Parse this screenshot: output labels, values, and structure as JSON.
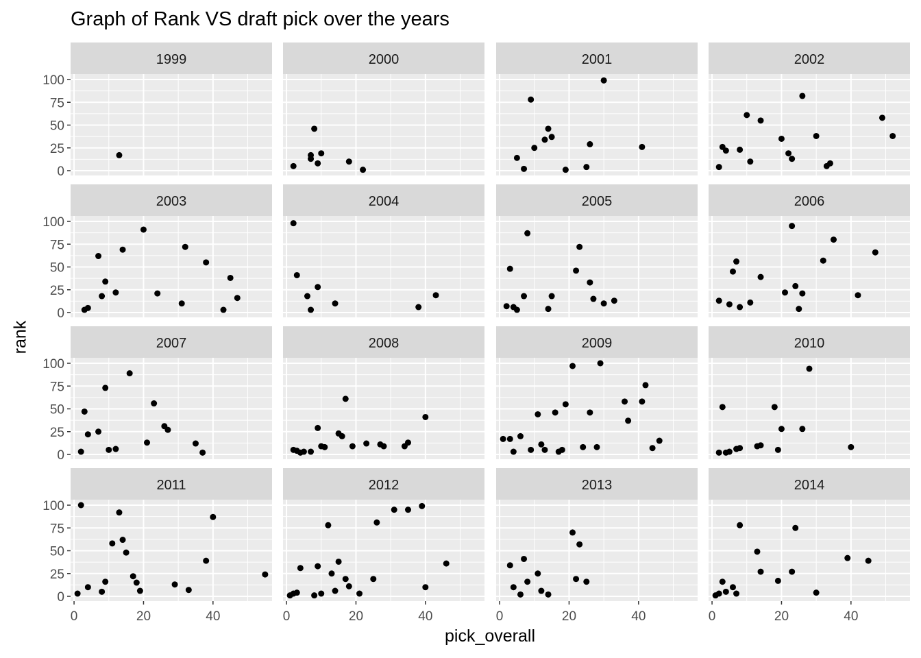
{
  "chart_data": {
    "type": "scatter",
    "title": "Graph of Rank VS draft pick over the years",
    "xlabel": "pick_overall",
    "ylabel": "rank",
    "xlim": [
      0,
      55
    ],
    "ylim": [
      0,
      100
    ],
    "x_ticks": [
      0,
      20,
      40
    ],
    "y_ticks": [
      0,
      25,
      50,
      75,
      100
    ],
    "grid": true,
    "colors": {
      "panel_bg": "#ebebeb",
      "strip_bg": "#d9d9d9",
      "grid": "#ffffff",
      "point": "#000000",
      "tick_text": "#4d4d4d"
    },
    "panels": [
      {
        "label": "1999",
        "points": [
          [
            13,
            17
          ]
        ]
      },
      {
        "label": "2000",
        "points": [
          [
            2,
            5
          ],
          [
            7,
            13
          ],
          [
            7,
            17
          ],
          [
            8,
            46
          ],
          [
            9,
            8
          ],
          [
            10,
            19
          ],
          [
            18,
            10
          ],
          [
            22,
            1
          ]
        ]
      },
      {
        "label": "2001",
        "points": [
          [
            5,
            14
          ],
          [
            7,
            2
          ],
          [
            9,
            78
          ],
          [
            10,
            25
          ],
          [
            13,
            34
          ],
          [
            14,
            46
          ],
          [
            15,
            37
          ],
          [
            19,
            1
          ],
          [
            25,
            4
          ],
          [
            26,
            29
          ],
          [
            30,
            99
          ],
          [
            41,
            26
          ]
        ]
      },
      {
        "label": "2002",
        "points": [
          [
            2,
            4
          ],
          [
            3,
            26
          ],
          [
            4,
            22
          ],
          [
            8,
            23
          ],
          [
            10,
            61
          ],
          [
            11,
            10
          ],
          [
            14,
            55
          ],
          [
            20,
            35
          ],
          [
            22,
            19
          ],
          [
            23,
            13
          ],
          [
            26,
            82
          ],
          [
            30,
            38
          ],
          [
            33,
            5
          ],
          [
            34,
            8
          ],
          [
            49,
            58
          ],
          [
            52,
            38
          ]
        ]
      },
      {
        "label": "2003",
        "points": [
          [
            3,
            3
          ],
          [
            4,
            5
          ],
          [
            7,
            62
          ],
          [
            8,
            18
          ],
          [
            9,
            34
          ],
          [
            12,
            22
          ],
          [
            14,
            69
          ],
          [
            20,
            91
          ],
          [
            24,
            21
          ],
          [
            31,
            10
          ],
          [
            32,
            72
          ],
          [
            38,
            55
          ],
          [
            43,
            3
          ],
          [
            45,
            38
          ],
          [
            47,
            16
          ]
        ]
      },
      {
        "label": "2004",
        "points": [
          [
            2,
            98
          ],
          [
            3,
            41
          ],
          [
            6,
            18
          ],
          [
            7,
            3
          ],
          [
            9,
            28
          ],
          [
            14,
            10
          ],
          [
            38,
            6
          ],
          [
            43,
            19
          ]
        ]
      },
      {
        "label": "2005",
        "points": [
          [
            2,
            7
          ],
          [
            3,
            48
          ],
          [
            4,
            6
          ],
          [
            5,
            3
          ],
          [
            7,
            18
          ],
          [
            8,
            87
          ],
          [
            14,
            4
          ],
          [
            15,
            18
          ],
          [
            22,
            46
          ],
          [
            23,
            72
          ],
          [
            26,
            33
          ],
          [
            27,
            15
          ],
          [
            30,
            10
          ],
          [
            33,
            13
          ]
        ]
      },
      {
        "label": "2006",
        "points": [
          [
            2,
            13
          ],
          [
            5,
            9
          ],
          [
            6,
            45
          ],
          [
            7,
            56
          ],
          [
            8,
            6
          ],
          [
            11,
            11
          ],
          [
            14,
            39
          ],
          [
            21,
            22
          ],
          [
            23,
            95
          ],
          [
            24,
            29
          ],
          [
            25,
            4
          ],
          [
            26,
            21
          ],
          [
            32,
            57
          ],
          [
            35,
            80
          ],
          [
            42,
            19
          ],
          [
            47,
            66
          ]
        ]
      },
      {
        "label": "2007",
        "points": [
          [
            2,
            3
          ],
          [
            3,
            47
          ],
          [
            4,
            22
          ],
          [
            7,
            25
          ],
          [
            9,
            73
          ],
          [
            10,
            5
          ],
          [
            12,
            6
          ],
          [
            16,
            89
          ],
          [
            21,
            13
          ],
          [
            23,
            56
          ],
          [
            26,
            31
          ],
          [
            27,
            27
          ],
          [
            35,
            12
          ],
          [
            37,
            2
          ]
        ]
      },
      {
        "label": "2008",
        "points": [
          [
            2,
            5
          ],
          [
            3,
            4
          ],
          [
            4,
            2
          ],
          [
            5,
            3
          ],
          [
            7,
            3
          ],
          [
            9,
            29
          ],
          [
            10,
            9
          ],
          [
            11,
            8
          ],
          [
            15,
            23
          ],
          [
            16,
            20
          ],
          [
            17,
            61
          ],
          [
            19,
            9
          ],
          [
            23,
            12
          ],
          [
            27,
            11
          ],
          [
            28,
            9
          ],
          [
            34,
            9
          ],
          [
            35,
            13
          ],
          [
            40,
            41
          ]
        ]
      },
      {
        "label": "2009",
        "points": [
          [
            1,
            17
          ],
          [
            3,
            17
          ],
          [
            4,
            3
          ],
          [
            6,
            20
          ],
          [
            9,
            5
          ],
          [
            11,
            44
          ],
          [
            12,
            11
          ],
          [
            13,
            5
          ],
          [
            16,
            46
          ],
          [
            17,
            3
          ],
          [
            18,
            5
          ],
          [
            19,
            55
          ],
          [
            21,
            97
          ],
          [
            24,
            8
          ],
          [
            26,
            46
          ],
          [
            28,
            8
          ],
          [
            29,
            100
          ],
          [
            36,
            58
          ],
          [
            37,
            37
          ],
          [
            41,
            58
          ],
          [
            42,
            76
          ],
          [
            44,
            7
          ],
          [
            46,
            15
          ]
        ]
      },
      {
        "label": "2010",
        "points": [
          [
            2,
            2
          ],
          [
            3,
            52
          ],
          [
            4,
            2
          ],
          [
            5,
            3
          ],
          [
            7,
            6
          ],
          [
            8,
            7
          ],
          [
            13,
            9
          ],
          [
            14,
            10
          ],
          [
            18,
            52
          ],
          [
            19,
            5
          ],
          [
            20,
            28
          ],
          [
            26,
            28
          ],
          [
            28,
            94
          ],
          [
            40,
            8
          ]
        ]
      },
      {
        "label": "2011",
        "points": [
          [
            1,
            3
          ],
          [
            2,
            100
          ],
          [
            4,
            10
          ],
          [
            8,
            5
          ],
          [
            9,
            16
          ],
          [
            11,
            58
          ],
          [
            13,
            92
          ],
          [
            14,
            62
          ],
          [
            15,
            48
          ],
          [
            17,
            22
          ],
          [
            18,
            15
          ],
          [
            19,
            6
          ],
          [
            29,
            13
          ],
          [
            33,
            7
          ],
          [
            38,
            39
          ],
          [
            40,
            87
          ],
          [
            55,
            24
          ]
        ]
      },
      {
        "label": "2012",
        "points": [
          [
            1,
            1
          ],
          [
            2,
            3
          ],
          [
            3,
            4
          ],
          [
            4,
            31
          ],
          [
            8,
            1
          ],
          [
            9,
            33
          ],
          [
            10,
            3
          ],
          [
            12,
            78
          ],
          [
            13,
            25
          ],
          [
            14,
            6
          ],
          [
            15,
            38
          ],
          [
            17,
            19
          ],
          [
            18,
            11
          ],
          [
            21,
            3
          ],
          [
            25,
            19
          ],
          [
            26,
            81
          ],
          [
            31,
            95
          ],
          [
            35,
            95
          ],
          [
            39,
            99
          ],
          [
            40,
            10
          ],
          [
            46,
            36
          ]
        ]
      },
      {
        "label": "2013",
        "points": [
          [
            3,
            34
          ],
          [
            4,
            10
          ],
          [
            6,
            2
          ],
          [
            7,
            41
          ],
          [
            8,
            16
          ],
          [
            11,
            25
          ],
          [
            12,
            6
          ],
          [
            14,
            2
          ],
          [
            21,
            70
          ],
          [
            22,
            19
          ],
          [
            23,
            57
          ],
          [
            25,
            16
          ]
        ]
      },
      {
        "label": "2014",
        "points": [
          [
            1,
            1
          ],
          [
            2,
            3
          ],
          [
            3,
            16
          ],
          [
            4,
            5
          ],
          [
            6,
            10
          ],
          [
            7,
            3
          ],
          [
            8,
            78
          ],
          [
            13,
            49
          ],
          [
            14,
            27
          ],
          [
            19,
            17
          ],
          [
            23,
            27
          ],
          [
            24,
            75
          ],
          [
            30,
            4
          ],
          [
            39,
            42
          ],
          [
            45,
            39
          ]
        ]
      }
    ]
  }
}
